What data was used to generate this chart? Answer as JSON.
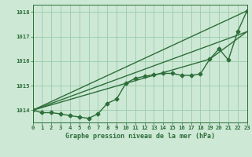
{
  "background_color": "#cde8d5",
  "plot_bg_color": "#cde8d5",
  "grid_color": "#99ccaa",
  "line_color": "#2d6e3a",
  "title": "Graphe pression niveau de la mer (hPa)",
  "xlim": [
    0,
    23
  ],
  "ylim": [
    1013.5,
    1018.3
  ],
  "yticks": [
    1014,
    1015,
    1016,
    1017,
    1018
  ],
  "xticks": [
    0,
    1,
    2,
    3,
    4,
    5,
    6,
    7,
    8,
    9,
    10,
    11,
    12,
    13,
    14,
    15,
    16,
    17,
    18,
    19,
    20,
    21,
    22,
    23
  ],
  "xtick_labels": [
    "0",
    "1",
    "2",
    "3",
    "4",
    "5",
    "6",
    "7",
    "8",
    "9",
    "10",
    "11",
    "12",
    "13",
    "14",
    "15",
    "16",
    "17",
    "18",
    "19",
    "20",
    "21",
    "22",
    "23"
  ],
  "line1": [
    1014.0,
    1013.9,
    1013.9,
    1013.85,
    1013.78,
    1013.72,
    1013.67,
    1013.85,
    1014.28,
    1014.45,
    1015.1,
    1015.3,
    1015.38,
    1015.45,
    1015.5,
    1015.5,
    1015.42,
    1015.42,
    1015.48,
    1016.08,
    1016.5,
    1016.05,
    1017.2,
    1018.05
  ],
  "line2_pts": [
    [
      0,
      1014.0
    ],
    [
      23,
      1018.05
    ]
  ],
  "line3_pts": [
    [
      0,
      1014.0
    ],
    [
      23,
      1017.2
    ]
  ],
  "line4_pts": [
    [
      0,
      1014.0
    ],
    [
      19,
      1016.08
    ],
    [
      23,
      1017.2
    ]
  ],
  "marker_size": 2.5,
  "line_width": 1.0,
  "title_fontsize": 6.0,
  "tick_fontsize": 5.2
}
